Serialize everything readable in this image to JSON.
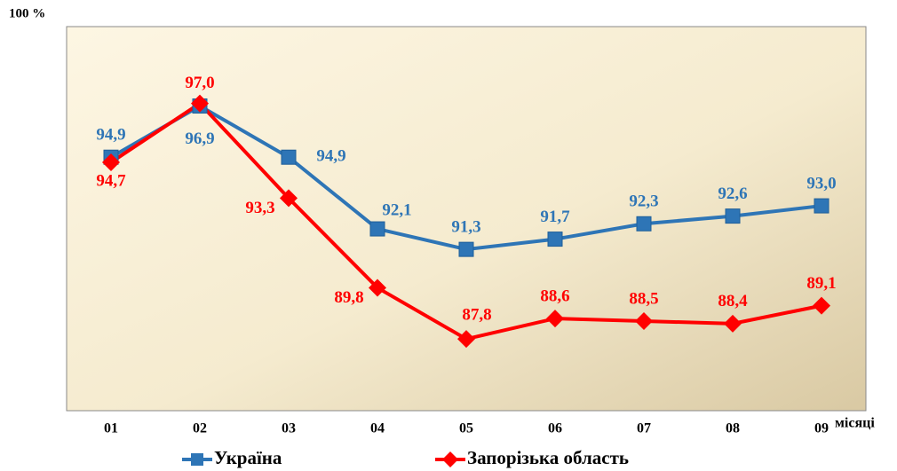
{
  "chart_data": {
    "type": "line",
    "ylabel": "100 %",
    "xlabel": "місяці",
    "categories": [
      "01",
      "02",
      "03",
      "04",
      "05",
      "06",
      "07",
      "08",
      "09"
    ],
    "ylim": [
      85,
      100
    ],
    "series": [
      {
        "name": "Україна",
        "color": "#2e75b6",
        "marker": "square",
        "values": [
          94.9,
          96.9,
          94.9,
          92.1,
          91.3,
          91.7,
          92.3,
          92.6,
          93.0
        ],
        "value_labels": [
          "94,9",
          "96,9",
          "94,9",
          "92,1",
          "91,3",
          "91,7",
          "92,3",
          "92,6",
          "93,0"
        ]
      },
      {
        "name": "Запорізька область",
        "color": "#ff0000",
        "marker": "diamond",
        "values": [
          94.7,
          97.0,
          93.3,
          89.8,
          87.8,
          88.6,
          88.5,
          88.4,
          89.1
        ],
        "value_labels": [
          "94,7",
          "97,0",
          "93,3",
          "89,8",
          "87,8",
          "88,6",
          "88,5",
          "88,4",
          "89,1"
        ]
      }
    ]
  }
}
